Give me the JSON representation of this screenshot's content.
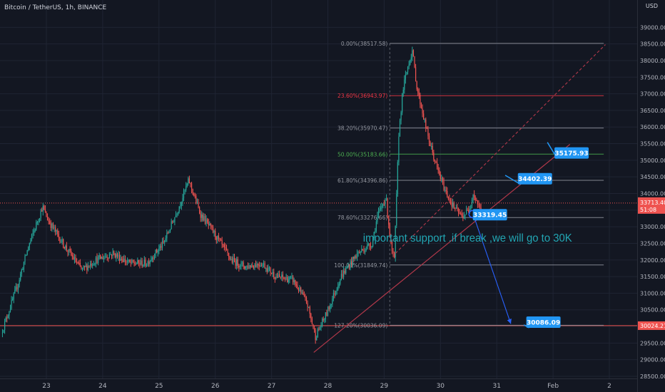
{
  "header": {
    "symbol_title": "Bitcoin / TetherUS, 1h, BINANCE",
    "currency": "USD"
  },
  "chart_data": {
    "type": "candlestick",
    "ylim": [
      28500,
      39500
    ],
    "yticks": [
      28500,
      29000,
      29500,
      30000,
      30500,
      31000,
      31500,
      32000,
      32500,
      33000,
      33500,
      34000,
      34500,
      35000,
      35500,
      36000,
      36500,
      37000,
      37500,
      38000,
      38500,
      39000
    ],
    "xticks": [
      {
        "label": "23",
        "t": 0
      },
      {
        "label": "24",
        "t": 1
      },
      {
        "label": "25",
        "t": 2
      },
      {
        "label": "26",
        "t": 3
      },
      {
        "label": "27",
        "t": 4
      },
      {
        "label": "28",
        "t": 5
      },
      {
        "label": "29",
        "t": 6
      },
      {
        "label": "30",
        "t": 7
      },
      {
        "label": "31",
        "t": 8
      },
      {
        "label": "Feb",
        "t": 9
      },
      {
        "label": "2",
        "t": 10
      }
    ],
    "xlim": [
      -0.78,
      10.55
    ],
    "colors": {
      "up": "#26a69a",
      "down": "#ef5350",
      "grid": "#1f2433",
      "axis_text": "#b2b5be",
      "background": "#131722"
    },
    "price_path": [
      [
        -0.78,
        29800
      ],
      [
        -0.5,
        31200
      ],
      [
        -0.3,
        32400
      ],
      [
        -0.05,
        33600
      ],
      [
        0.05,
        33200
      ],
      [
        0.35,
        32400
      ],
      [
        0.65,
        31700
      ],
      [
        0.9,
        32000
      ],
      [
        1.2,
        32200
      ],
      [
        1.5,
        31900
      ],
      [
        1.8,
        31900
      ],
      [
        2.1,
        32500
      ],
      [
        2.35,
        33500
      ],
      [
        2.55,
        34400
      ],
      [
        2.75,
        33400
      ],
      [
        3.0,
        32800
      ],
      [
        3.3,
        32000
      ],
      [
        3.55,
        31800
      ],
      [
        3.85,
        31900
      ],
      [
        4.1,
        31500
      ],
      [
        4.4,
        31400
      ],
      [
        4.65,
        30700
      ],
      [
        4.8,
        29700
      ],
      [
        5.0,
        30400
      ],
      [
        5.25,
        31500
      ],
      [
        5.55,
        32200
      ],
      [
        5.8,
        32500
      ],
      [
        5.9,
        33300
      ],
      [
        6.05,
        33900
      ],
      [
        6.15,
        32300
      ],
      [
        6.2,
        32000
      ],
      [
        6.28,
        35800
      ],
      [
        6.35,
        37100
      ],
      [
        6.45,
        37900
      ],
      [
        6.52,
        38300
      ],
      [
        6.6,
        37200
      ],
      [
        6.8,
        35700
      ],
      [
        6.95,
        34800
      ],
      [
        7.1,
        34100
      ],
      [
        7.25,
        33600
      ],
      [
        7.4,
        33300
      ],
      [
        7.52,
        33500
      ],
      [
        7.6,
        34000
      ],
      [
        7.68,
        33700
      ],
      [
        7.73,
        33500
      ]
    ],
    "last_price": {
      "value": 33713.4,
      "label": "33713.40",
      "countdown": "51:08",
      "color": "#ef5350"
    },
    "horizontal_line": {
      "value": 30024.21,
      "label": "30024.21",
      "color": "#ef5350"
    },
    "fibonacci": {
      "x_start": 6.1,
      "x_end": 9.9,
      "levels": [
        {
          "label": "0.00%(38517.58)",
          "value": 38517.58,
          "color": "#9598a1"
        },
        {
          "label": "23.60%(36943.97)",
          "value": 36943.97,
          "color": "#f23645"
        },
        {
          "label": "38.20%(35970.47)",
          "value": 35970.47,
          "color": "#9598a1"
        },
        {
          "label": "50.00%(35183.66)",
          "value": 35183.66,
          "color": "#4caf50"
        },
        {
          "label": "61.80%(34396.86)",
          "value": 34396.86,
          "color": "#9598a1"
        },
        {
          "label": "78.60%(33276.66)",
          "value": 33276.66,
          "color": "#9598a1"
        },
        {
          "label": "100.00%(31849.74)",
          "value": 31849.74,
          "color": "#9598a1"
        },
        {
          "label": "127.20%(30036.09)",
          "value": 30036.09,
          "color": "#9598a1"
        }
      ]
    },
    "trendline": {
      "from": [
        4.75,
        29220
      ],
      "to": [
        9.3,
        35480
      ],
      "color": "#b2384a"
    },
    "trendline_extension": {
      "from": [
        6.2,
        32200
      ],
      "to": [
        9.93,
        38480
      ],
      "color": "#b2384a"
    },
    "callouts": [
      {
        "label": "35175.93",
        "value": 35175.93,
        "t": 9.05,
        "anchor": [
          8.9,
          35540
        ]
      },
      {
        "label": "34402.39",
        "value": 34402.39,
        "t": 8.4,
        "anchor": [
          8.15,
          34550
        ]
      },
      {
        "label": "33319.45",
        "value": 33319.45,
        "t": 7.6,
        "anchor": [
          7.62,
          33390
        ]
      },
      {
        "label": "30086.09",
        "value": 30086.09,
        "t": 8.55,
        "anchor": [
          8.48,
          30050
        ]
      }
    ],
    "annotation": {
      "text": "important support .if break ,we will go to 30K",
      "color": "#22a6b3",
      "value": 32550,
      "t": 6.6
    },
    "arrow": {
      "from": [
        7.6,
        33280
      ],
      "to": [
        8.25,
        30080
      ],
      "color": "#2962ff"
    },
    "circle_marker": {
      "t": 7.57,
      "value": 33380
    }
  }
}
